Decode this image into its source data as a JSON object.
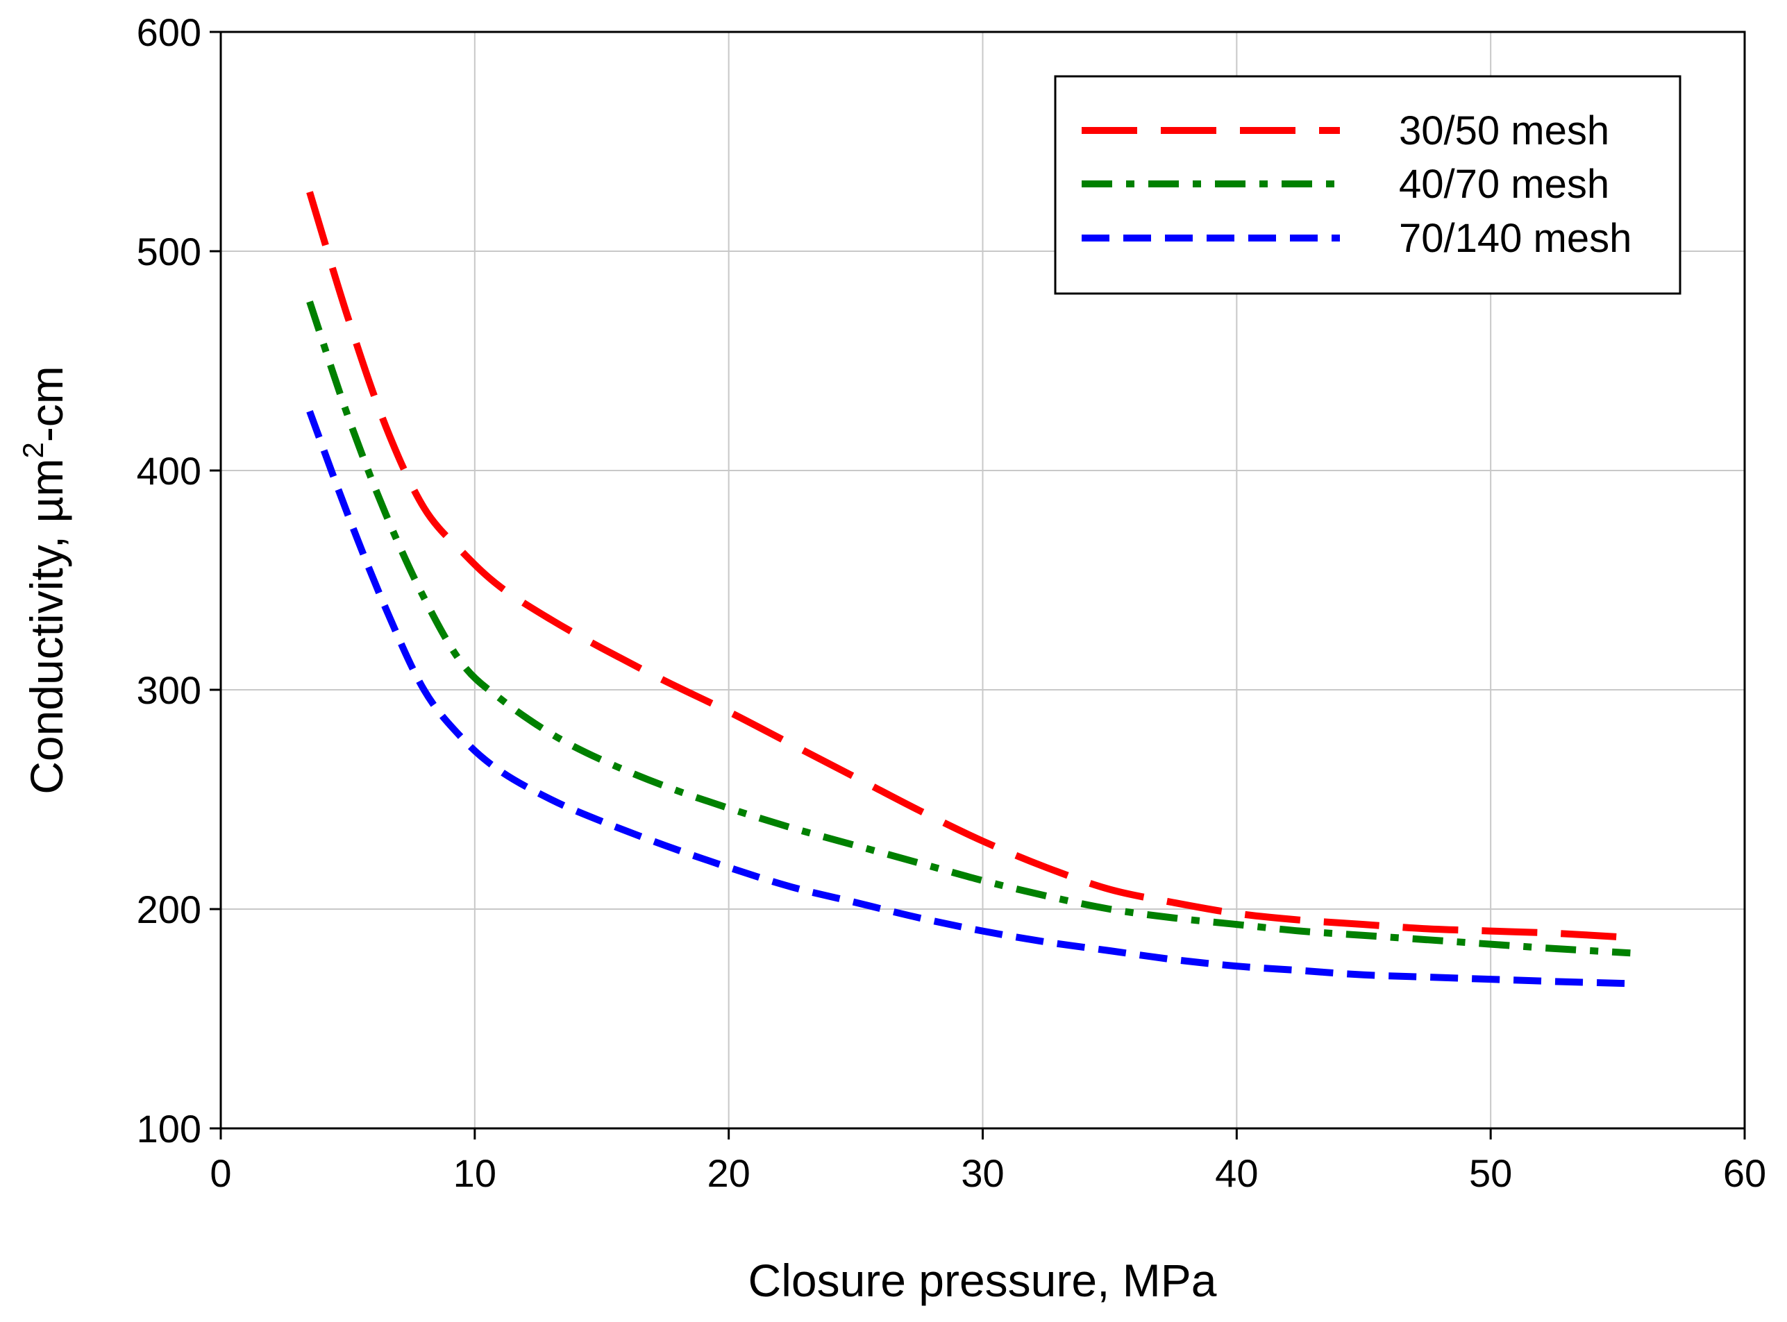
{
  "chart_data": {
    "type": "line",
    "title": "",
    "xlabel": "Closure pressure, MPa",
    "ylabel": "Conductivity, µm²-cm",
    "ylabel_parts": {
      "base": "Conductivity, µm",
      "sup": "2",
      "rest": "-cm"
    },
    "xlim": [
      0,
      60
    ],
    "ylim": [
      100,
      600
    ],
    "xticks": [
      0,
      10,
      20,
      30,
      40,
      50,
      60
    ],
    "yticks": [
      100,
      200,
      300,
      400,
      500,
      600
    ],
    "grid": true,
    "legend_position": "top-right",
    "series": [
      {
        "name": "30/50 mesh",
        "color": "#ff0000",
        "style": "long-dash",
        "x": [
          3.5,
          5,
          6.5,
          8,
          9.5,
          11,
          13,
          15,
          17.5,
          20,
          22.5,
          25,
          27.5,
          30,
          32.5,
          35,
          37.5,
          40,
          42.5,
          45,
          47.5,
          50,
          52.5,
          55.5
        ],
        "y": [
          527,
          470,
          420,
          383,
          363,
          347,
          332,
          319,
          304,
          290,
          275,
          260,
          245,
          231,
          219,
          209,
          203,
          198,
          195,
          193,
          191,
          190,
          189,
          187
        ]
      },
      {
        "name": "40/70 mesh",
        "color": "#008000",
        "style": "dash-dot",
        "x": [
          3.5,
          5,
          6.5,
          8,
          9.5,
          11,
          13,
          15,
          17.5,
          20,
          22.5,
          25,
          27.5,
          30,
          32.5,
          35,
          37.5,
          40,
          42.5,
          45,
          47.5,
          50,
          52.5,
          55.5
        ],
        "y": [
          477,
          425,
          380,
          342,
          312,
          296,
          280,
          268,
          256,
          246,
          237,
          229,
          221,
          213,
          206,
          200,
          196,
          193,
          190,
          188,
          186,
          184,
          182,
          180
        ]
      },
      {
        "name": "70/140 mesh",
        "color": "#0000ff",
        "style": "dash",
        "x": [
          3.5,
          5,
          6.5,
          8,
          9.5,
          11,
          13,
          15,
          17.5,
          20,
          22.5,
          25,
          27.5,
          30,
          32.5,
          35,
          37.5,
          40,
          42.5,
          45,
          47.5,
          50,
          52.5,
          55.5
        ],
        "y": [
          427,
          380,
          337,
          300,
          278,
          263,
          250,
          240,
          229,
          219,
          210,
          203,
          196,
          190,
          185,
          181,
          177,
          174,
          172,
          170,
          169,
          168,
          167,
          166
        ]
      }
    ]
  }
}
